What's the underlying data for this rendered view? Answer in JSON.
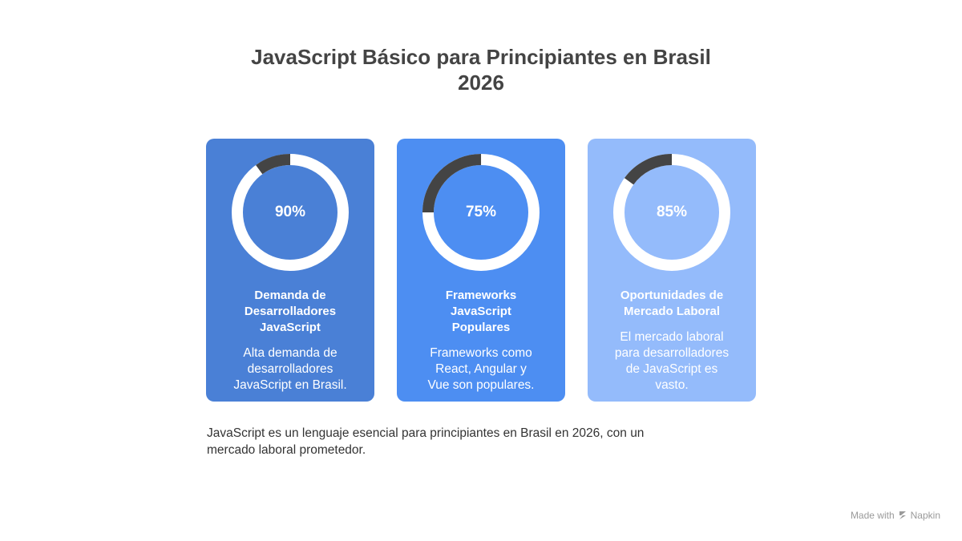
{
  "title": "JavaScript Básico para Principiantes en Brasil\n2026",
  "cards": [
    {
      "value_label": "90%",
      "title": "Demanda de\nDesarrolladores\nJavaScript",
      "description": "Alta demanda de\ndesarrolladores\nJavaScript en Brasil.",
      "color": "#4A80D6"
    },
    {
      "value_label": "75%",
      "title": "Frameworks\nJavaScript\nPopulares",
      "description": "Frameworks como\nReact, Angular y\nVue son populares.",
      "color": "#4D8EF2"
    },
    {
      "value_label": "85%",
      "title": "Oportunidades de\nMercado Laboral",
      "description": "El mercado laboral\npara desarrolladores\nde JavaScript es\nvasto.",
      "color": "#94BBFB"
    }
  ],
  "chart_data": {
    "type": "pie",
    "categories": [
      "Demanda de Desarrolladores JavaScript",
      "Frameworks JavaScript Populares",
      "Oportunidades de Mercado Laboral"
    ],
    "values": [
      90,
      75,
      85
    ],
    "ylim": [
      0,
      100
    ],
    "colors": {
      "ring": "#ffffff",
      "remainder": "#444444"
    }
  },
  "summary": "JavaScript es un lenguaje esencial para principiantes en Brasil en 2026, con un\nmercado laboral prometedor.",
  "watermark": {
    "text": "Made with",
    "brand": "Napkin",
    "icon": "napkin-logo-icon"
  }
}
